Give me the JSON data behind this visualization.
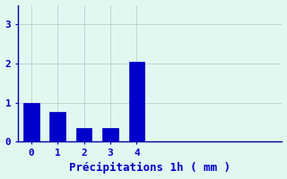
{
  "categories": [
    0,
    1,
    2,
    3,
    4
  ],
  "values": [
    1.0,
    0.75,
    0.35,
    0.35,
    2.05
  ],
  "bar_color": "#0000cc",
  "bar_edge_color": "#0000bb",
  "background_color": "#e0f8f0",
  "xlabel": "Précipitations 1h ( mm )",
  "xlabel_color": "#0000cc",
  "ylim": [
    0,
    3.5
  ],
  "xlim": [
    -0.5,
    9.5
  ],
  "yticks": [
    0,
    1,
    2,
    3
  ],
  "xticks": [
    0,
    1,
    2,
    3,
    4
  ],
  "grid_color": "#aacccc",
  "tick_color": "#0000cc",
  "bar_width": 0.6,
  "xlabel_fontsize": 9,
  "tick_fontsize": 8,
  "spine_color": "#0000aa"
}
